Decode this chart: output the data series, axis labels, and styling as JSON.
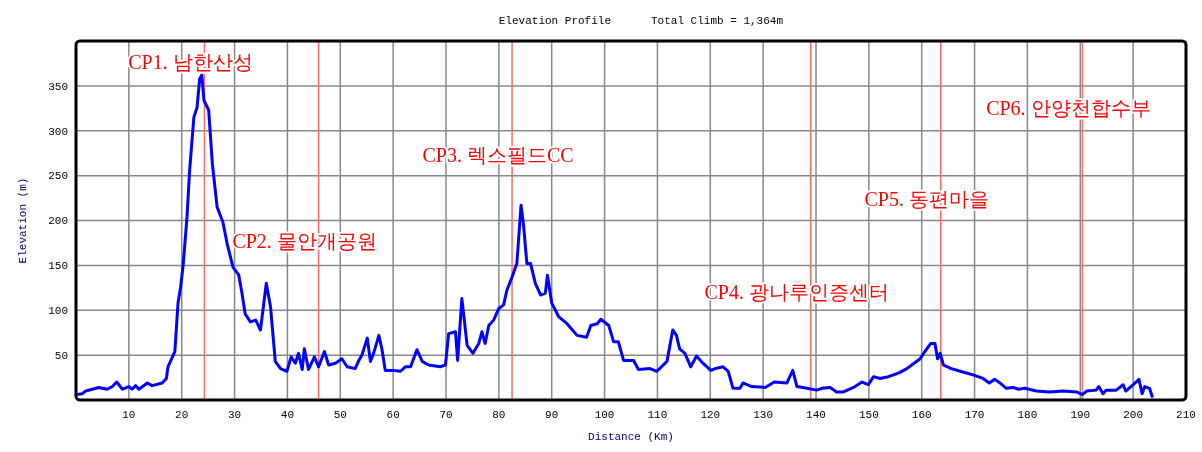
{
  "chart_data": {
    "type": "line",
    "title": "Elevation Profile",
    "subtitle": "Total Climb = 1,364m",
    "xlabel": "Distance (Km)",
    "ylabel": "Elevation (m)",
    "xlim": [
      0,
      210
    ],
    "xticks": [
      10,
      20,
      30,
      40,
      50,
      60,
      70,
      80,
      90,
      100,
      110,
      120,
      130,
      140,
      150,
      160,
      170,
      180,
      190,
      200,
      210
    ],
    "ylim": [
      0,
      400
    ],
    "yticks": [
      50,
      100,
      150,
      200,
      250,
      300,
      350
    ],
    "grid": true,
    "marker": "none",
    "line_style": "solid",
    "series": [
      {
        "color": "#0000ff",
        "x": [
          0,
          1.2,
          1.8,
          3.1,
          4.3,
          5.9,
          6.9,
          7.7,
          8.8,
          10,
          10.6,
          11.3,
          11.9,
          13.5,
          14.4,
          16.3,
          17.1,
          17.4,
          18.7,
          19.3,
          19.8,
          20.3,
          21,
          21.5,
          22.3,
          22.9,
          23.4,
          23.8,
          24.2,
          25.1,
          25.8,
          26.7,
          27.8,
          28.6,
          29.7,
          30.8,
          31.4,
          32,
          33,
          34,
          34.9,
          36,
          36.8,
          37.7,
          38.7,
          39.9,
          40.7,
          41.5,
          42.1,
          42.8,
          43.2,
          44,
          45.1,
          45.9,
          47,
          47.8,
          49.1,
          50.3,
          51.3,
          52.8,
          53.5,
          54.1,
          55.1,
          55.7,
          56.3,
          57.3,
          57.9,
          58.5,
          59.8,
          61.4,
          62.3,
          63.3,
          64.5,
          65.5,
          66.7,
          68.9,
          69.9,
          70.5,
          71.8,
          72.2,
          73,
          74,
          75.1,
          76.2,
          76.8,
          77.4,
          78.1,
          79,
          80,
          80.9,
          81.5,
          82.5,
          83.4,
          84.2,
          84.7,
          85.3,
          86,
          86.9,
          87.9,
          88.8,
          89.2,
          90,
          91.3,
          92.9,
          94.8,
          96.6,
          97.4,
          98.6,
          99.3,
          100.8,
          101.7,
          102.6,
          103.6,
          105.5,
          106.4,
          108.6,
          109.9,
          111.8,
          112.9,
          113.6,
          114.2,
          115.2,
          116.3,
          117.4,
          118.6,
          120.1,
          120.9,
          122.4,
          123.4,
          124.3,
          125.6,
          126.2,
          127.8,
          130.4,
          132.1,
          134.5,
          135.6,
          136.4,
          138.3,
          140.1,
          141.1,
          142.7,
          143.9,
          145.2,
          147.1,
          148.7,
          149.9,
          150.9,
          152.1,
          153.7,
          155.6,
          157.2,
          159.7,
          160.6,
          161.7,
          162.5,
          163,
          163.5,
          164.1,
          165.6,
          167.3,
          169.7,
          171.6,
          172.8,
          173.8,
          174.8,
          176,
          177.3,
          178.3,
          179.5,
          181.7,
          184.2,
          186.8,
          189.3,
          190.4,
          191.2,
          193,
          193.5,
          194.3,
          194.9,
          196.8,
          198.1,
          198.6,
          200,
          201.1,
          201.7,
          202.2,
          203.1,
          203.6
        ],
        "values": [
          6,
          7,
          10,
          12,
          14,
          12,
          15,
          20,
          12,
          15,
          12,
          16,
          12,
          19,
          16,
          19,
          24,
          37,
          54,
          108,
          126,
          152,
          204,
          256,
          315,
          326,
          358,
          362,
          334,
          323,
          263,
          215,
          198,
          174,
          148,
          139,
          119,
          96,
          87,
          89,
          78,
          130,
          104,
          43,
          35,
          32,
          48,
          41,
          52,
          34,
          57,
          34,
          48,
          37,
          54,
          39,
          41,
          46,
          37,
          35,
          44,
          50,
          69,
          43,
          52,
          72,
          56,
          33,
          33,
          32,
          37,
          37,
          56,
          43,
          39,
          37,
          39,
          74,
          76,
          44,
          113,
          61,
          52,
          63,
          76,
          63,
          83,
          89,
          102,
          106,
          122,
          137,
          152,
          217,
          193,
          152,
          152,
          130,
          117,
          119,
          139,
          108,
          93,
          85,
          72,
          70,
          83,
          85,
          90,
          83,
          65,
          65,
          44,
          44,
          34,
          35,
          32,
          43,
          78,
          72,
          57,
          52,
          37,
          49,
          41,
          33,
          35,
          37,
          32,
          13,
          13,
          19,
          15,
          14,
          20,
          19,
          33,
          15,
          13,
          11,
          13,
          14,
          9,
          9,
          14,
          20,
          17,
          26,
          24,
          26,
          30,
          35,
          46,
          54,
          63,
          63,
          46,
          52,
          39,
          35,
          32,
          28,
          24,
          19,
          23,
          19,
          13,
          14,
          12,
          13,
          10,
          9,
          10,
          9,
          6,
          10,
          11,
          15,
          7,
          11,
          11,
          17,
          10,
          17,
          23,
          7,
          15,
          13,
          4
        ]
      }
    ],
    "ref_lines": [
      {
        "axis": "x",
        "value": 24.3,
        "color": "#ff6666",
        "label": "CP1. 남한산성"
      },
      {
        "axis": "x",
        "value": 45.9,
        "color": "#ff6666",
        "label": "CP2. 물안개공원"
      },
      {
        "axis": "x",
        "value": 82.5,
        "color": "#ff6666",
        "label": "CP3. 렉스필드CC"
      },
      {
        "axis": "x",
        "value": 139,
        "color": "#ff6666",
        "label": "CP4. 광나루인증센터"
      },
      {
        "axis": "x",
        "value": 163.6,
        "color": "#ff6666",
        "label": "CP5. 동편마을"
      },
      {
        "axis": "x",
        "value": 190.4,
        "color": "#ff6666",
        "label": "CP6. 안양천합수부"
      }
    ]
  }
}
